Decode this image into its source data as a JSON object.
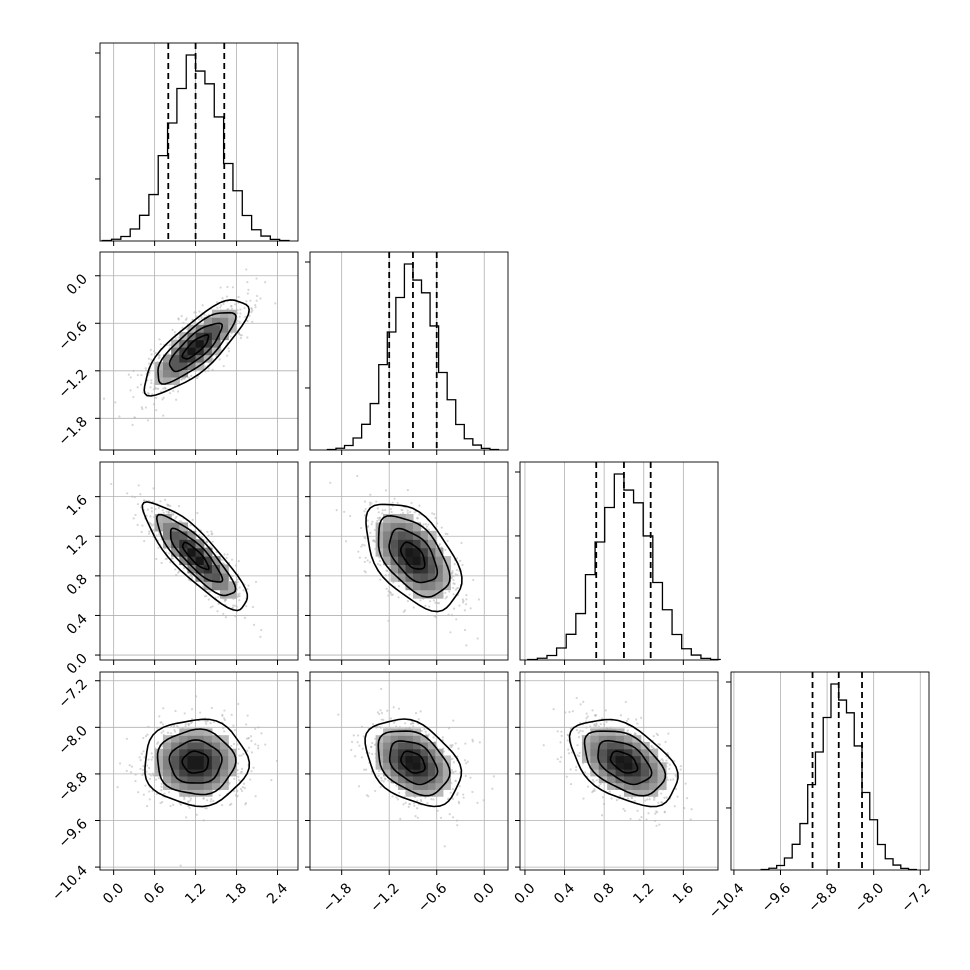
{
  "chart_data": {
    "type": "corner",
    "parameters": [
      {
        "name": "",
        "range": [
          -0.2,
          2.7
        ],
        "ticks": [
          "0.0",
          "0.6",
          "1.2",
          "1.8",
          "2.4"
        ],
        "tick_values": [
          0.0,
          0.6,
          1.2,
          1.8,
          2.4
        ],
        "mean": 1.2,
        "sd": 0.38,
        "quantiles": [
          0.8,
          1.2,
          1.62
        ]
      },
      {
        "name": "",
        "range": [
          -2.2,
          0.3
        ],
        "ticks": [
          "-1.8",
          "-1.2",
          "-0.6",
          "0.0"
        ],
        "tick_values": [
          -1.8,
          -1.2,
          -0.6,
          0.0
        ],
        "mean": -0.9,
        "sd": 0.3,
        "quantiles": [
          -1.2,
          -0.9,
          -0.6
        ]
      },
      {
        "name": "",
        "range": [
          -0.05,
          1.95
        ],
        "ticks": [
          "0.0",
          "0.4",
          "0.8",
          "1.2",
          "1.6"
        ],
        "tick_values": [
          0.0,
          0.4,
          0.8,
          1.2,
          1.6
        ],
        "mean": 1.0,
        "sd": 0.27,
        "quantiles": [
          0.72,
          1.0,
          1.27
        ]
      },
      {
        "name": "",
        "range": [
          -10.45,
          -7.05
        ],
        "ticks": [
          "-10.4",
          "-9.6",
          "-8.8",
          "-8.0",
          "-7.2"
        ],
        "tick_values": [
          -10.4,
          -9.6,
          -8.8,
          -8.0,
          -7.2
        ],
        "mean": -8.6,
        "sd": 0.37,
        "quantiles": [
          -9.05,
          -8.6,
          -8.2
        ]
      }
    ],
    "correlations": {
      "0-1": 0.8,
      "0-2": -0.85,
      "0-3": 0.0,
      "1-2": -0.5,
      "1-3": -0.35,
      "2-3": -0.45
    },
    "histogram_bins": 20,
    "contour_levels_sigma": [
      0.5,
      1.0,
      1.5,
      2.0
    ],
    "grid": true
  }
}
